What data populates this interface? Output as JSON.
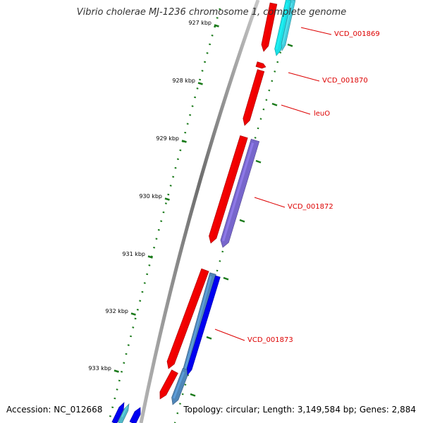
{
  "title": "Vibrio cholerae MJ-1236 chromosome 1, complete genome",
  "accession": "Accession: NC_012668",
  "summary": "Topology: circular; Length: 3,149,584 bp; Genes: 2,884",
  "colors": {
    "backbone": "#8a8a8a",
    "tick": "#1a7a1a",
    "label": "#dd0000",
    "gene_red": "#ee0000",
    "gene_cyan": "#19e0e6",
    "gene_purple": "#7766cc",
    "gene_steel": "#4f86b8",
    "gene_blue": "#0000ee"
  },
  "scale": {
    "unit": "kbp",
    "ticks": [
      {
        "label": "927 kbp"
      },
      {
        "label": "928 kbp"
      },
      {
        "label": "929 kbp"
      },
      {
        "label": "930 kbp"
      },
      {
        "label": "931 kbp"
      },
      {
        "label": "932 kbp"
      },
      {
        "label": "933 kbp"
      }
    ]
  },
  "gene_labels": [
    {
      "name": "VCD_001869"
    },
    {
      "name": "VCD_001870"
    },
    {
      "name": "leuO"
    },
    {
      "name": "VCD_001872"
    },
    {
      "name": "VCD_001873"
    }
  ]
}
